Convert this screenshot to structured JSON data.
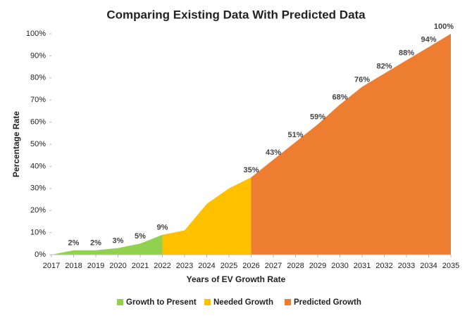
{
  "chart_data": {
    "type": "area",
    "title": "Comparing Existing Data With Predicted Data",
    "x_label": "Years of EV Growth Rate",
    "y_label": "Percentage Rate",
    "x": [
      2017,
      2018,
      2019,
      2020,
      2021,
      2022,
      2023,
      2024,
      2025,
      2026,
      2027,
      2028,
      2029,
      2030,
      2031,
      2032,
      2033,
      2034,
      2035
    ],
    "xlim": [
      2017,
      2035
    ],
    "xticks": [
      2017,
      2018,
      2019,
      2020,
      2021,
      2022,
      2023,
      2024,
      2025,
      2026,
      2027,
      2028,
      2029,
      2030,
      2031,
      2032,
      2033,
      2034,
      2035
    ],
    "ylim": [
      0,
      100
    ],
    "yticks": [
      {
        "value": 0,
        "label": "0%"
      },
      {
        "value": 10,
        "label": "10%"
      },
      {
        "value": 20,
        "label": "20%"
      },
      {
        "value": 30,
        "label": "30%"
      },
      {
        "value": 40,
        "label": "40%"
      },
      {
        "value": 50,
        "label": "50%"
      },
      {
        "value": 60,
        "label": "60%"
      },
      {
        "value": 70,
        "label": "70%"
      },
      {
        "value": 80,
        "label": "80%"
      },
      {
        "value": 90,
        "label": "90%"
      },
      {
        "value": 100,
        "label": "100%"
      }
    ],
    "grid": false,
    "legend": "bottom",
    "series": [
      {
        "name": "Growth to Present",
        "color": "#92d050",
        "values": [
          0,
          2,
          2,
          3,
          5,
          9,
          null,
          null,
          null,
          null,
          null,
          null,
          null,
          null,
          null,
          null,
          null,
          null,
          null
        ],
        "value_labels": [
          null,
          "2%",
          "2%",
          "3%",
          "5%",
          "9%",
          null,
          null,
          null,
          null,
          null,
          null,
          null,
          null,
          null,
          null,
          null,
          null,
          null
        ]
      },
      {
        "name": "Needed Growth",
        "color": "#ffc000",
        "values": [
          null,
          null,
          null,
          null,
          null,
          9,
          11,
          23,
          30,
          35,
          null,
          null,
          null,
          null,
          null,
          null,
          null,
          null,
          null
        ]
      },
      {
        "name": "Predicted Growth",
        "color": "#ed7d31",
        "values": [
          null,
          null,
          null,
          null,
          null,
          null,
          null,
          null,
          null,
          35,
          43,
          51,
          59,
          68,
          76,
          82,
          88,
          94,
          100
        ],
        "value_labels": [
          null,
          null,
          null,
          null,
          null,
          null,
          null,
          null,
          null,
          "35%",
          "43%",
          "51%",
          "59%",
          "68%",
          "76%",
          "82%",
          "88%",
          "94%",
          "100%"
        ]
      }
    ]
  }
}
